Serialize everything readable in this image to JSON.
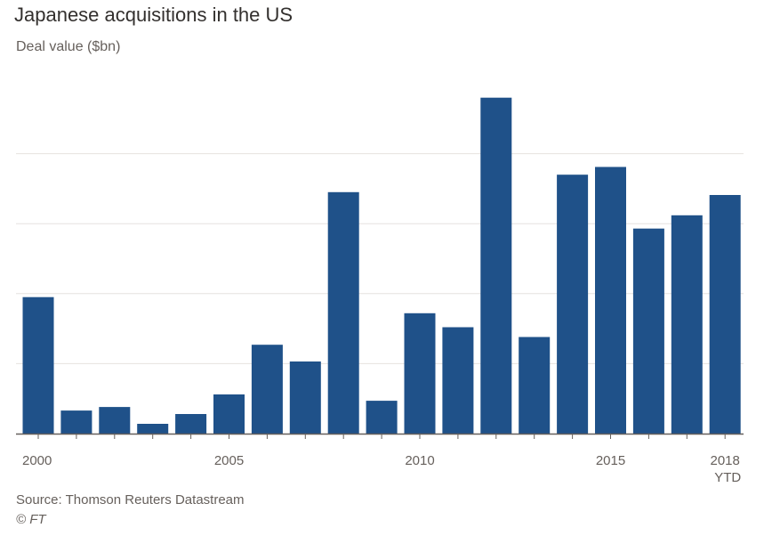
{
  "chart_data": {
    "type": "bar",
    "title": "Japanese acquisitions in the US",
    "ylabel": "Deal value ($bn)",
    "xlabel": "",
    "categories": [
      "2000",
      "2001",
      "2002",
      "2003",
      "2004",
      "2005",
      "2006",
      "2007",
      "2008",
      "2009",
      "2010",
      "2011",
      "2012",
      "2013",
      "2014",
      "2015",
      "2016",
      "2017",
      "2018 YTD"
    ],
    "values": [
      19.5,
      3.3,
      3.8,
      1.4,
      2.8,
      5.6,
      12.7,
      10.3,
      34.5,
      4.7,
      17.2,
      15.2,
      48.0,
      13.8,
      37.0,
      38.1,
      29.3,
      31.2,
      34.1
    ],
    "ylim": [
      0,
      50
    ],
    "yticks": [
      0,
      10,
      20,
      30,
      40
    ],
    "ytick_labels_visible": false,
    "xtick_labels": [
      {
        "category": "2000",
        "text": "2000"
      },
      {
        "category": "2005",
        "text": "2005"
      },
      {
        "category": "2010",
        "text": "2010"
      },
      {
        "category": "2015",
        "text": "2015"
      },
      {
        "category": "2018 YTD",
        "text": "2018",
        "text2": "YTD"
      }
    ],
    "grid": true,
    "bar_color": "#1f5189",
    "grid_color": "#e6e2df",
    "axis_color": "#66605c"
  },
  "source": "Source: Thomson Reuters Datastream",
  "credit": "© FT"
}
